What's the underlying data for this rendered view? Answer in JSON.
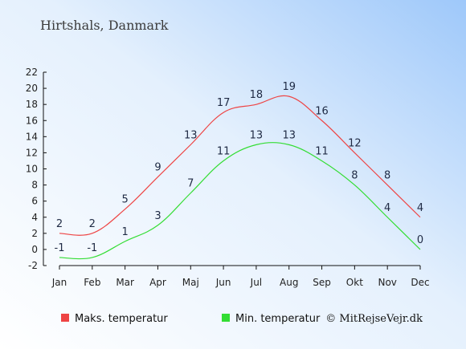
{
  "chart_data": {
    "type": "line",
    "title": "Hirtshals, Danmark",
    "categories": [
      "Jan",
      "Feb",
      "Mar",
      "Apr",
      "Maj",
      "Jun",
      "Jul",
      "Aug",
      "Sep",
      "Okt",
      "Nov",
      "Dec"
    ],
    "series": [
      {
        "name": "Maks. temperatur",
        "color": "#ee4444",
        "values": [
          2,
          2,
          5,
          9,
          13,
          17,
          18,
          19,
          16,
          12,
          8,
          4
        ]
      },
      {
        "name": "Min. temperatur",
        "color": "#33dd33",
        "values": [
          -1,
          -1,
          1,
          3,
          7,
          11,
          13,
          13,
          11,
          8,
          4,
          0
        ]
      }
    ],
    "yticks": [
      -2,
      0,
      2,
      4,
      6,
      8,
      10,
      12,
      14,
      16,
      18,
      20,
      22
    ],
    "ylim": [
      -2,
      22
    ],
    "legend_position": "bottom",
    "credit": "© MitRejseVejr.dk"
  }
}
